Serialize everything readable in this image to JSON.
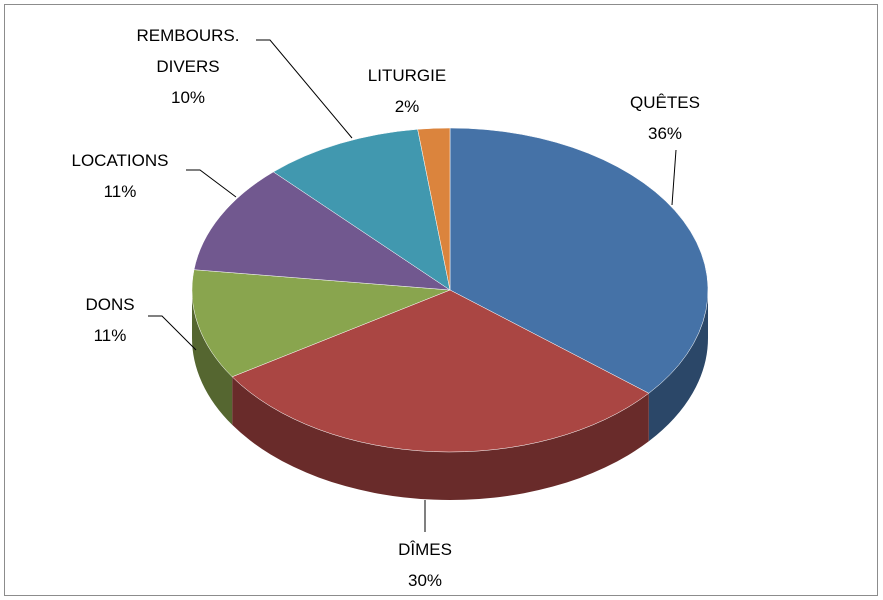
{
  "chart_data": {
    "type": "pie",
    "categories": [
      "QUÊTES",
      "DÎMES",
      "DONS",
      "LOCATIONS",
      "REMBOURS. DIVERS",
      "LITURGIE"
    ],
    "values": [
      36,
      30,
      11,
      11,
      10,
      2
    ],
    "value_labels": [
      "36%",
      "30%",
      "11%",
      "11%",
      "10%",
      "2%"
    ],
    "colors": [
      "#4572a7",
      "#aa4643",
      "#89a54e",
      "#71588f",
      "#4198af",
      "#db843d"
    ]
  }
}
